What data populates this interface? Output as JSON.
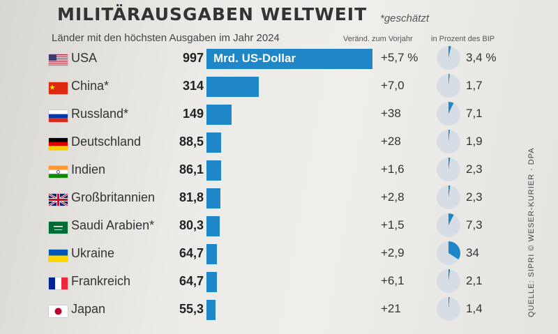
{
  "title": "MILITÄRAUSGABEN WELTWEIT",
  "note": "*geschätzt",
  "subtitle": "Länder mit den höchsten Ausgaben im Jahr 2024",
  "col_change": "Veränd. zum Vorjahr",
  "col_gdp": "in Prozent des BIP",
  "unit_label": "Mrd. US-Dollar",
  "source": "QUELLE: SIPRI  © WESER-KURIER · DPA",
  "colors": {
    "bar": "#1f86c8",
    "pie_fill": "#1f86c8",
    "pie_bg": "#d7dde4"
  },
  "chart_data": {
    "type": "bar",
    "orientation": "horizontal",
    "categories": [
      "USA",
      "China*",
      "Russland*",
      "Deutschland",
      "Indien",
      "Großbritannien",
      "Saudi Arabien*",
      "Ukraine",
      "Frankreich",
      "Japan"
    ],
    "values": [
      997,
      314,
      149,
      88.5,
      86.1,
      81.8,
      80.3,
      64.7,
      64.7,
      55.3
    ],
    "value_labels": [
      "997",
      "314",
      "149",
      "88,5",
      "86,1",
      "81,8",
      "80,3",
      "64,7",
      "64,7",
      "55,3"
    ],
    "change_labels": [
      "+5,7 %",
      "+7,0",
      "+38",
      "+28",
      "+1,6",
      "+2,8",
      "+1,5",
      "+2,9",
      "+6,1",
      "+21"
    ],
    "gdp_share": [
      3.4,
      1.7,
      7.1,
      1.9,
      2.3,
      2.3,
      7.3,
      34,
      2.1,
      1.4
    ],
    "gdp_labels": [
      "3,4 %",
      "1,7",
      "7,1",
      "1,9",
      "2,3",
      "2,3",
      "7,3",
      "34",
      "2,1",
      "1,4"
    ],
    "flags": [
      "us",
      "cn",
      "ru",
      "de",
      "in",
      "gb",
      "sa",
      "ua",
      "fr",
      "jp"
    ],
    "xlim": [
      0,
      997
    ]
  }
}
